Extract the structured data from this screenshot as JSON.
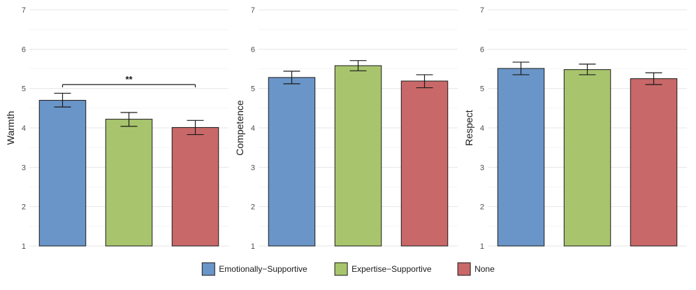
{
  "chart_data": {
    "type": "bar",
    "categories": [
      "Emotionally−Supportive",
      "Expertise−Supportive",
      "None"
    ],
    "colors": [
      "#6a95c8",
      "#a8c56e",
      "#c96868"
    ],
    "ylim": [
      1,
      7
    ],
    "yticks": [
      "1",
      "2",
      "3",
      "4",
      "5",
      "6",
      "7"
    ],
    "panels": [
      {
        "ylabel": "Warmth",
        "values": [
          4.7,
          4.22,
          4.01
        ],
        "error_low": [
          4.53,
          4.04,
          3.83
        ],
        "error_high": [
          4.88,
          4.39,
          4.19
        ],
        "significance": {
          "label": "**",
          "from": 0,
          "to": 2,
          "y": 5.1
        }
      },
      {
        "ylabel": "Competence",
        "values": [
          5.28,
          5.58,
          5.19
        ],
        "error_low": [
          5.12,
          5.45,
          5.02
        ],
        "error_high": [
          5.44,
          5.71,
          5.35
        ]
      },
      {
        "ylabel": "Respect",
        "values": [
          5.51,
          5.48,
          5.25
        ],
        "error_low": [
          5.35,
          5.35,
          5.1
        ],
        "error_high": [
          5.67,
          5.62,
          5.4
        ]
      }
    ],
    "legend": {
      "position": "bottom",
      "entries": [
        "Emotionally−Supportive",
        "Expertise−Supportive",
        "None"
      ]
    }
  }
}
